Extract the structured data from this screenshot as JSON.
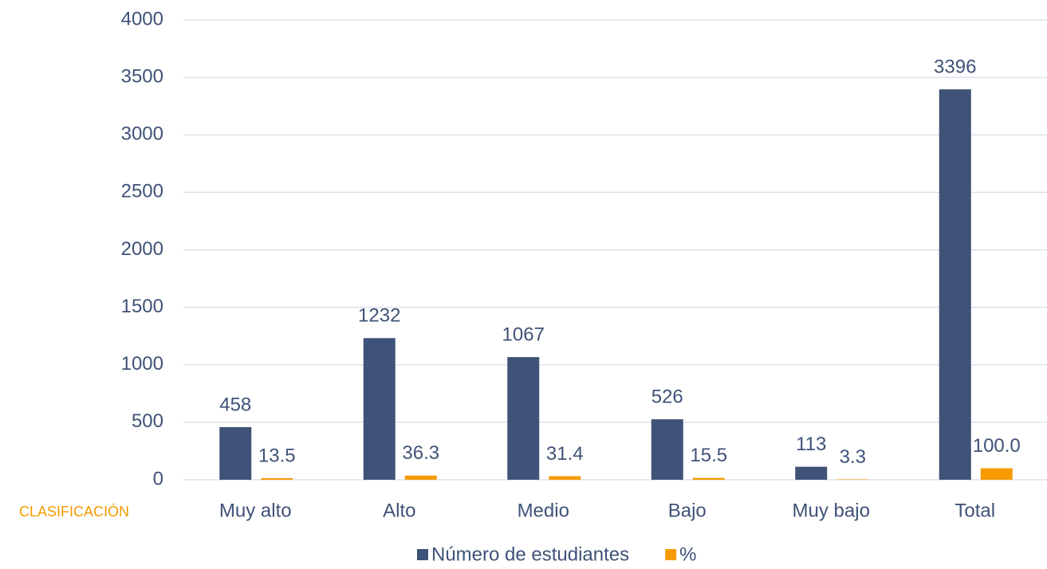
{
  "chart_data": {
    "type": "bar",
    "xlabel": "CLASIFICACIÓN",
    "categories": [
      "Muy alto",
      "Alto",
      "Medio",
      "Bajo",
      "Muy bajo",
      "Total"
    ],
    "series": [
      {
        "name": "Número de estudiantes",
        "color": "#3f5277",
        "values": [
          458,
          1232,
          1067,
          526,
          113,
          3396
        ]
      },
      {
        "name": "%",
        "color": "#f59a00",
        "values": [
          13.5,
          36.3,
          31.4,
          15.5,
          3.3,
          100.0
        ],
        "value_labels": [
          "13.5",
          "36.3",
          "31.4",
          "15.5",
          "3.3",
          "100.0"
        ]
      }
    ],
    "ylim": [
      0,
      4000
    ],
    "yticks": [
      0,
      500,
      1000,
      1500,
      2000,
      2500,
      3000,
      3500,
      4000
    ],
    "grid": true
  }
}
